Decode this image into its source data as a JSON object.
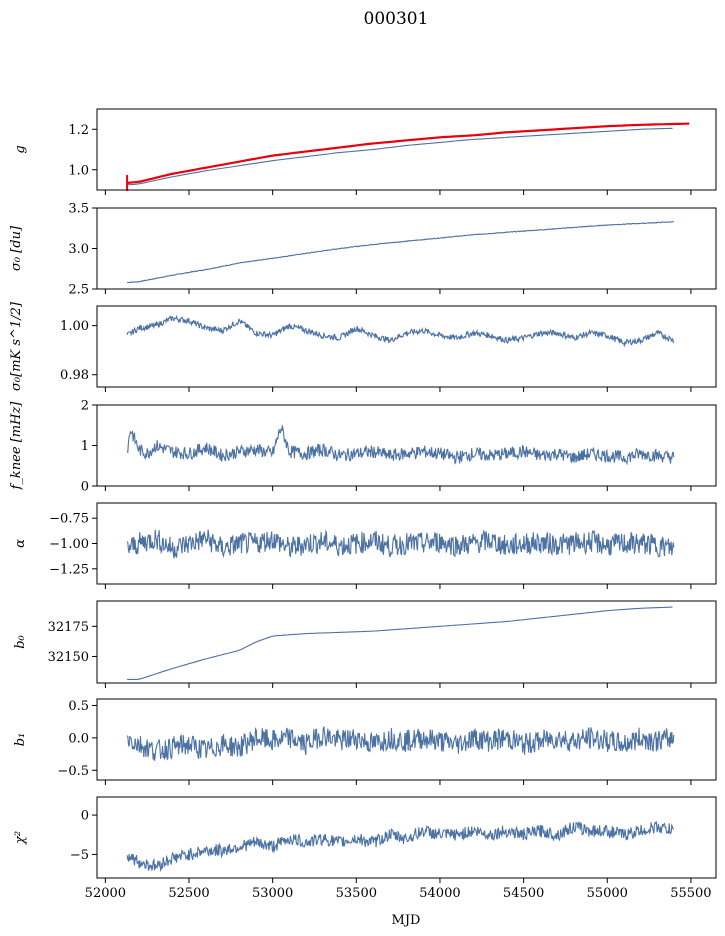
{
  "figure": {
    "title": "000301",
    "xlabel": "MJD"
  },
  "chart_data": {
    "type": "line",
    "x_axis": {
      "label": "MJD",
      "range": [
        51950,
        55650
      ],
      "ticks": [
        52000,
        52500,
        53000,
        53500,
        54000,
        54500,
        55000,
        55500
      ]
    },
    "line_color": "#4c72a4",
    "highlight_color": "#e8000b",
    "panels": [
      {
        "id": "g",
        "ylabel": "g",
        "ylim": [
          0.9,
          1.3
        ],
        "yticks": [
          1.0,
          1.2
        ],
        "ytick_labels": [
          "1.0",
          "1.2"
        ],
        "series": [
          {
            "x": [
              52130,
              52200,
              52400,
              52600,
              52800,
              53000,
              53200,
              53400,
              53600,
              53800,
              54000,
              54200,
              54400,
              54600,
              54800,
              55000,
              55200,
              55400
            ],
            "y": [
              0.925,
              0.93,
              0.965,
              0.995,
              1.02,
              1.045,
              1.065,
              1.085,
              1.1,
              1.12,
              1.135,
              1.15,
              1.16,
              1.17,
              1.18,
              1.19,
              1.2,
              1.205
            ],
            "color": "line"
          },
          {
            "x": [
              52130,
              52200,
              52400,
              52600,
              52800,
              53000,
              53200,
              53400,
              53600,
              53800,
              54000,
              54200,
              54400,
              54600,
              54800,
              55000,
              55200,
              55500
            ],
            "y": [
              0.935,
              0.94,
              0.98,
              1.01,
              1.04,
              1.07,
              1.09,
              1.11,
              1.13,
              1.145,
              1.16,
              1.17,
              1.185,
              1.195,
              1.205,
              1.215,
              1.222,
              1.228
            ],
            "color": "highlight"
          }
        ]
      },
      {
        "id": "sigma0-du",
        "ylabel": "σ₀ [du]",
        "ylim": [
          2.5,
          3.5
        ],
        "yticks": [
          2.5,
          3.0,
          3.5
        ],
        "ytick_labels": [
          "2.5",
          "3.0",
          "3.5"
        ],
        "series": [
          {
            "x": [
              52130,
              52200,
              52400,
              52600,
              52800,
              53000,
              53200,
              53400,
              53600,
              53800,
              54000,
              54200,
              54400,
              54600,
              54800,
              55000,
              55200,
              55400
            ],
            "y": [
              2.58,
              2.59,
              2.67,
              2.74,
              2.82,
              2.88,
              2.94,
              3.0,
              3.05,
              3.09,
              3.13,
              3.17,
              3.2,
              3.23,
              3.26,
              3.29,
              3.31,
              3.33
            ],
            "color": "line"
          }
        ]
      },
      {
        "id": "sigma0-mk",
        "ylabel": "σ₀[mK s^1/2]",
        "ylim": [
          0.975,
          1.008
        ],
        "yticks": [
          0.98,
          1.0
        ],
        "ytick_labels": [
          "0.98",
          "1.00"
        ],
        "series": [
          {
            "x": [
              52130,
              52200,
              52300,
              52400,
              52500,
              52600,
              52700,
              52800,
              52900,
              53000,
              53100,
              53200,
              53300,
              53400,
              53500,
              53600,
              53700,
              53800,
              53900,
              54000,
              54100,
              54200,
              54300,
              54400,
              54500,
              54600,
              54700,
              54800,
              54900,
              55000,
              55100,
              55200,
              55300,
              55400
            ],
            "y": [
              0.996,
              0.999,
              1.0,
              1.003,
              1.002,
              0.999,
              0.998,
              1.002,
              0.997,
              0.996,
              1.0,
              0.998,
              0.996,
              0.995,
              0.999,
              0.996,
              0.994,
              0.997,
              0.998,
              0.996,
              0.995,
              0.997,
              0.996,
              0.994,
              0.995,
              0.997,
              0.997,
              0.995,
              0.997,
              0.996,
              0.993,
              0.994,
              0.997,
              0.994
            ],
            "color": "line"
          }
        ]
      },
      {
        "id": "fknee",
        "ylabel": "f_knee [mHz]",
        "ylim": [
          0,
          2
        ],
        "yticks": [
          0,
          1,
          2
        ],
        "ytick_labels": [
          "0",
          "1",
          "2"
        ],
        "series": [
          {
            "x": [
              52130,
              52150,
              52200,
              52250,
              52300,
              52400,
              52500,
              52600,
              52700,
              52800,
              52900,
              53000,
              53050,
              53100,
              53200,
              53300,
              53400,
              53500,
              53600,
              53700,
              53800,
              53900,
              54000,
              54100,
              54200,
              54300,
              54400,
              54500,
              54600,
              54700,
              54800,
              54900,
              55000,
              55100,
              55200,
              55300,
              55400
            ],
            "y": [
              0.85,
              1.4,
              0.9,
              0.8,
              1.0,
              0.85,
              0.8,
              0.95,
              0.75,
              0.85,
              0.9,
              0.8,
              1.45,
              0.85,
              0.8,
              0.9,
              0.75,
              0.8,
              0.85,
              0.75,
              0.8,
              0.85,
              0.8,
              0.7,
              0.8,
              0.75,
              0.8,
              0.85,
              0.75,
              0.8,
              0.7,
              0.8,
              0.75,
              0.7,
              0.8,
              0.75,
              0.7
            ],
            "color": "line"
          }
        ]
      },
      {
        "id": "alpha",
        "ylabel": "α",
        "ylim": [
          -1.4,
          -0.6
        ],
        "yticks": [
          -1.25,
          -1.0,
          -0.75
        ],
        "ytick_labels": [
          "−1.25",
          "−1.00",
          "−0.75"
        ],
        "series": [
          {
            "x": [
              52130,
              52200,
              52300,
              52400,
              52500,
              52600,
              52700,
              52800,
              52900,
              53000,
              53100,
              53200,
              53300,
              53400,
              53500,
              53600,
              53700,
              53800,
              53900,
              54000,
              54100,
              54200,
              54300,
              54400,
              54500,
              54600,
              54700,
              54800,
              54900,
              55000,
              55100,
              55200,
              55300,
              55400
            ],
            "y": [
              -1.05,
              -1.0,
              -0.95,
              -1.05,
              -1.0,
              -0.95,
              -1.05,
              -1.0,
              -1.0,
              -0.95,
              -1.05,
              -1.0,
              -0.98,
              -1.02,
              -1.0,
              -0.97,
              -1.03,
              -1.0,
              -1.0,
              -0.98,
              -1.02,
              -1.0,
              -0.97,
              -1.03,
              -1.0,
              -0.99,
              -1.01,
              -1.0,
              -0.98,
              -1.02,
              -1.0,
              -1.0,
              -1.02,
              -1.05
            ],
            "color": "line"
          }
        ]
      },
      {
        "id": "b0",
        "ylabel": "b₀",
        "ylim": [
          32128,
          32196
        ],
        "yticks": [
          32150,
          32175
        ],
        "ytick_labels": [
          "32150",
          "32175"
        ],
        "series": [
          {
            "x": [
              52130,
              52200,
              52400,
              52600,
              52800,
              52900,
              53000,
              53200,
              53400,
              53600,
              53800,
              54000,
              54200,
              54400,
              54600,
              54800,
              55000,
              55200,
              55400
            ],
            "y": [
              32131,
              32131,
              32140,
              32148,
              32155,
              32162,
              32167,
              32169,
              32170,
              32171,
              32173,
              32175,
              32177,
              32179,
              32182,
              32185,
              32188,
              32190,
              32191
            ],
            "color": "line"
          }
        ]
      },
      {
        "id": "b1",
        "ylabel": "b₁",
        "ylim": [
          -0.65,
          0.6
        ],
        "yticks": [
          -0.5,
          0.0,
          0.5
        ],
        "ytick_labels": [
          "−0.5",
          "0.0",
          "0.5"
        ],
        "series": [
          {
            "x": [
              52130,
              52200,
              52300,
              52400,
              52500,
              52600,
              52700,
              52800,
              52900,
              53000,
              53100,
              53200,
              53300,
              53400,
              53500,
              53600,
              53700,
              53800,
              53900,
              54000,
              54100,
              54200,
              54300,
              54400,
              54500,
              54600,
              54700,
              54800,
              54900,
              55000,
              55100,
              55200,
              55300,
              55400
            ],
            "y": [
              0.0,
              -0.1,
              -0.2,
              -0.15,
              -0.1,
              -0.2,
              -0.1,
              -0.15,
              0.0,
              -0.05,
              0.0,
              -0.1,
              0.05,
              -0.05,
              0.0,
              -0.1,
              0.0,
              -0.05,
              0.0,
              -0.05,
              -0.1,
              0.0,
              -0.05,
              0.0,
              -0.1,
              -0.05,
              0.0,
              -0.05,
              0.0,
              -0.05,
              -0.1,
              0.0,
              -0.05,
              0.0
            ],
            "color": "line"
          }
        ]
      },
      {
        "id": "chi2",
        "ylabel": "χ²",
        "ylim": [
          -8,
          2.3
        ],
        "yticks": [
          -5,
          0
        ],
        "ytick_labels": [
          "−5",
          "0"
        ],
        "series": [
          {
            "x": [
              52130,
              52200,
              52300,
              52400,
              52500,
              52600,
              52700,
              52800,
              52900,
              53000,
              53100,
              53200,
              53300,
              53400,
              53500,
              53600,
              53700,
              53800,
              53900,
              54000,
              54100,
              54200,
              54300,
              54400,
              54500,
              54600,
              54700,
              54800,
              54900,
              55000,
              55100,
              55200,
              55300,
              55400
            ],
            "y": [
              -5.0,
              -6.0,
              -6.5,
              -5.5,
              -5.0,
              -4.5,
              -4.5,
              -4.0,
              -3.5,
              -4.0,
              -3.0,
              -3.5,
              -3.0,
              -3.5,
              -3.0,
              -3.5,
              -2.5,
              -3.0,
              -2.0,
              -2.5,
              -2.5,
              -2.0,
              -2.5,
              -2.0,
              -2.5,
              -2.0,
              -2.5,
              -1.5,
              -2.0,
              -2.0,
              -2.5,
              -2.0,
              -1.5,
              -2.0
            ],
            "color": "line"
          }
        ]
      }
    ]
  }
}
